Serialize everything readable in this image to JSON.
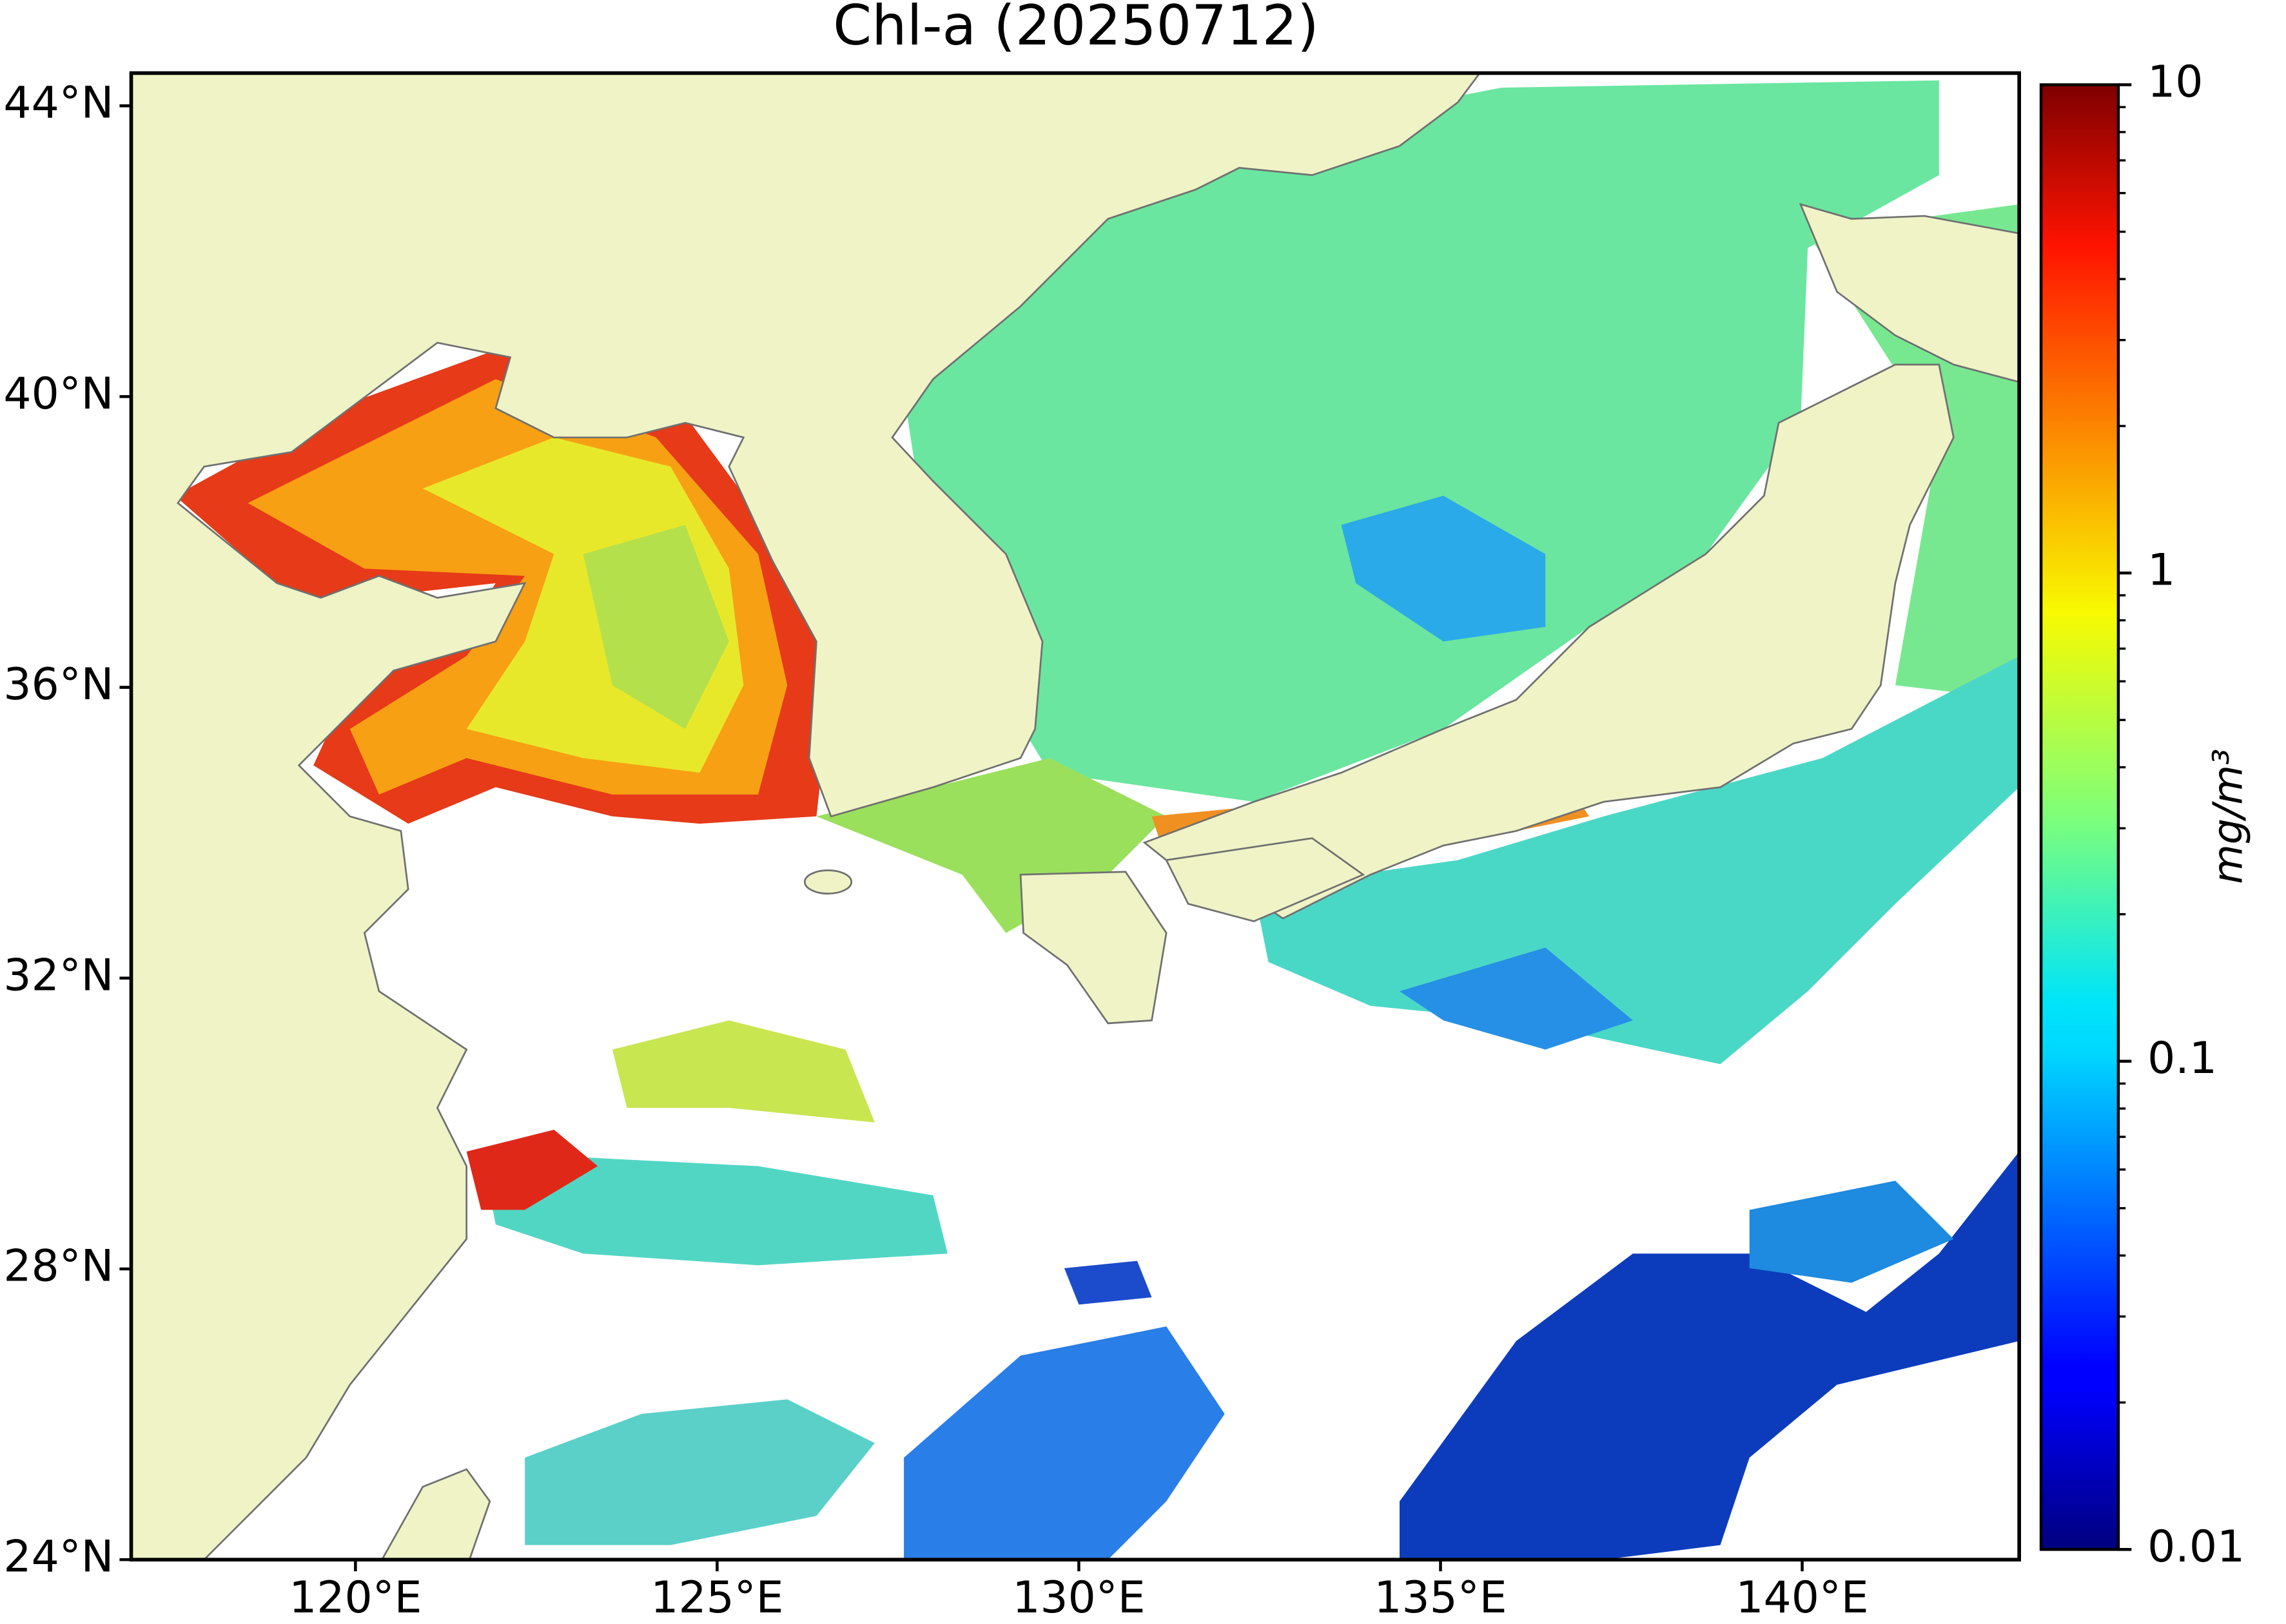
{
  "chart_data": {
    "type": "map",
    "title": "Chl-a (20250712)",
    "xlim": [
      116.9,
      143
    ],
    "ylim": [
      24,
      44.45
    ],
    "xticks": [
      {
        "value": 120,
        "label": "120°E"
      },
      {
        "value": 125,
        "label": "125°E"
      },
      {
        "value": 130,
        "label": "130°E"
      },
      {
        "value": 135,
        "label": "135°E"
      },
      {
        "value": 140,
        "label": "140°E"
      }
    ],
    "yticks": [
      {
        "value": 24,
        "label": "24°N"
      },
      {
        "value": 28,
        "label": "28°N"
      },
      {
        "value": 32,
        "label": "32°N"
      },
      {
        "value": 36,
        "label": "36°N"
      },
      {
        "value": 40,
        "label": "40°N"
      },
      {
        "value": 44,
        "label": "44°N"
      }
    ],
    "colorbar": {
      "label": "mg/m³",
      "colormap": "jet",
      "log": true,
      "lim": [
        0.01,
        10
      ],
      "ticks": [
        0.01,
        0.1,
        1,
        10
      ]
    }
  }
}
